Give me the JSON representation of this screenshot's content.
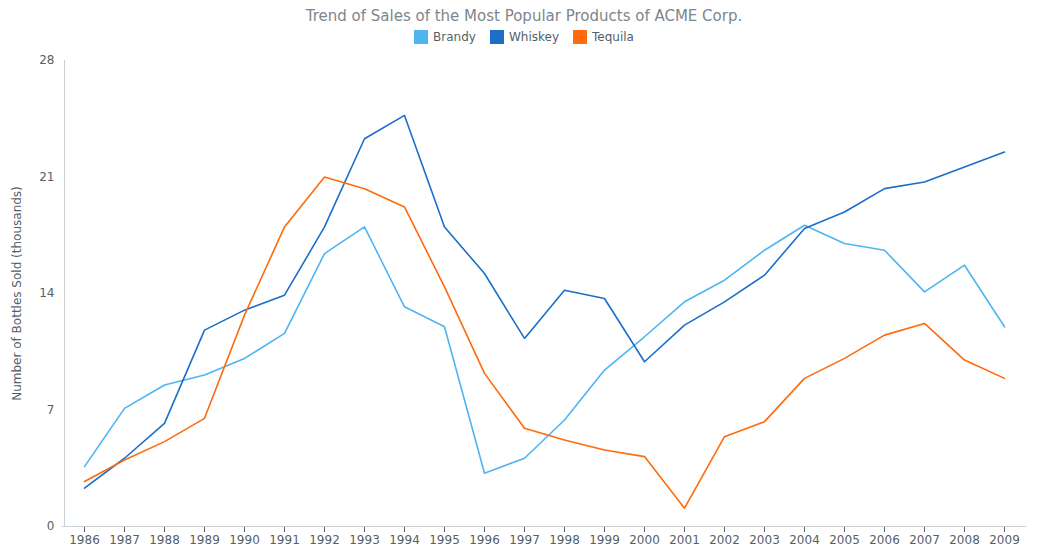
{
  "chart_data": {
    "type": "line",
    "title": "Trend of Sales of the Most Popular Products of ACME Corp.",
    "y_label": "Number of Bottles Sold (thousands)",
    "categories": [
      "1986",
      "1987",
      "1988",
      "1989",
      "1990",
      "1991",
      "1992",
      "1993",
      "1994",
      "1995",
      "1996",
      "1997",
      "1998",
      "1999",
      "2000",
      "2001",
      "2002",
      "2003",
      "2004",
      "2005",
      "2006",
      "2007",
      "2008",
      "2009"
    ],
    "series": [
      {
        "name": "Brandy",
        "color": "#4fb4f2",
        "values": [
          3.6,
          7.1,
          8.5,
          9.1,
          10.1,
          11.6,
          16.4,
          18.0,
          13.2,
          12.0,
          3.2,
          4.1,
          6.4,
          9.4,
          11.4,
          13.5,
          14.8,
          16.6,
          18.1,
          17.0,
          16.6,
          14.1,
          15.7,
          12.0
        ]
      },
      {
        "name": "Whiskey",
        "color": "#1a6fc9",
        "values": [
          2.3,
          4.1,
          6.2,
          11.8,
          13.0,
          13.9,
          18.0,
          23.3,
          24.7,
          18.0,
          15.2,
          11.3,
          14.2,
          13.7,
          9.9,
          12.1,
          13.5,
          15.1,
          17.9,
          18.9,
          20.3,
          20.7,
          21.6,
          22.5
        ]
      },
      {
        "name": "Tequila",
        "color": "#ff6a0d",
        "values": [
          2.7,
          4.0,
          5.1,
          6.5,
          12.7,
          18.0,
          21.0,
          20.3,
          19.2,
          14.4,
          9.2,
          5.9,
          5.2,
          4.6,
          4.2,
          1.1,
          5.4,
          6.3,
          8.9,
          10.1,
          11.5,
          12.2,
          10.0,
          8.9
        ]
      }
    ],
    "ylim": [
      0,
      28
    ],
    "yticks": [
      0,
      7,
      14,
      21,
      28
    ],
    "grid": false,
    "legend": "top"
  }
}
